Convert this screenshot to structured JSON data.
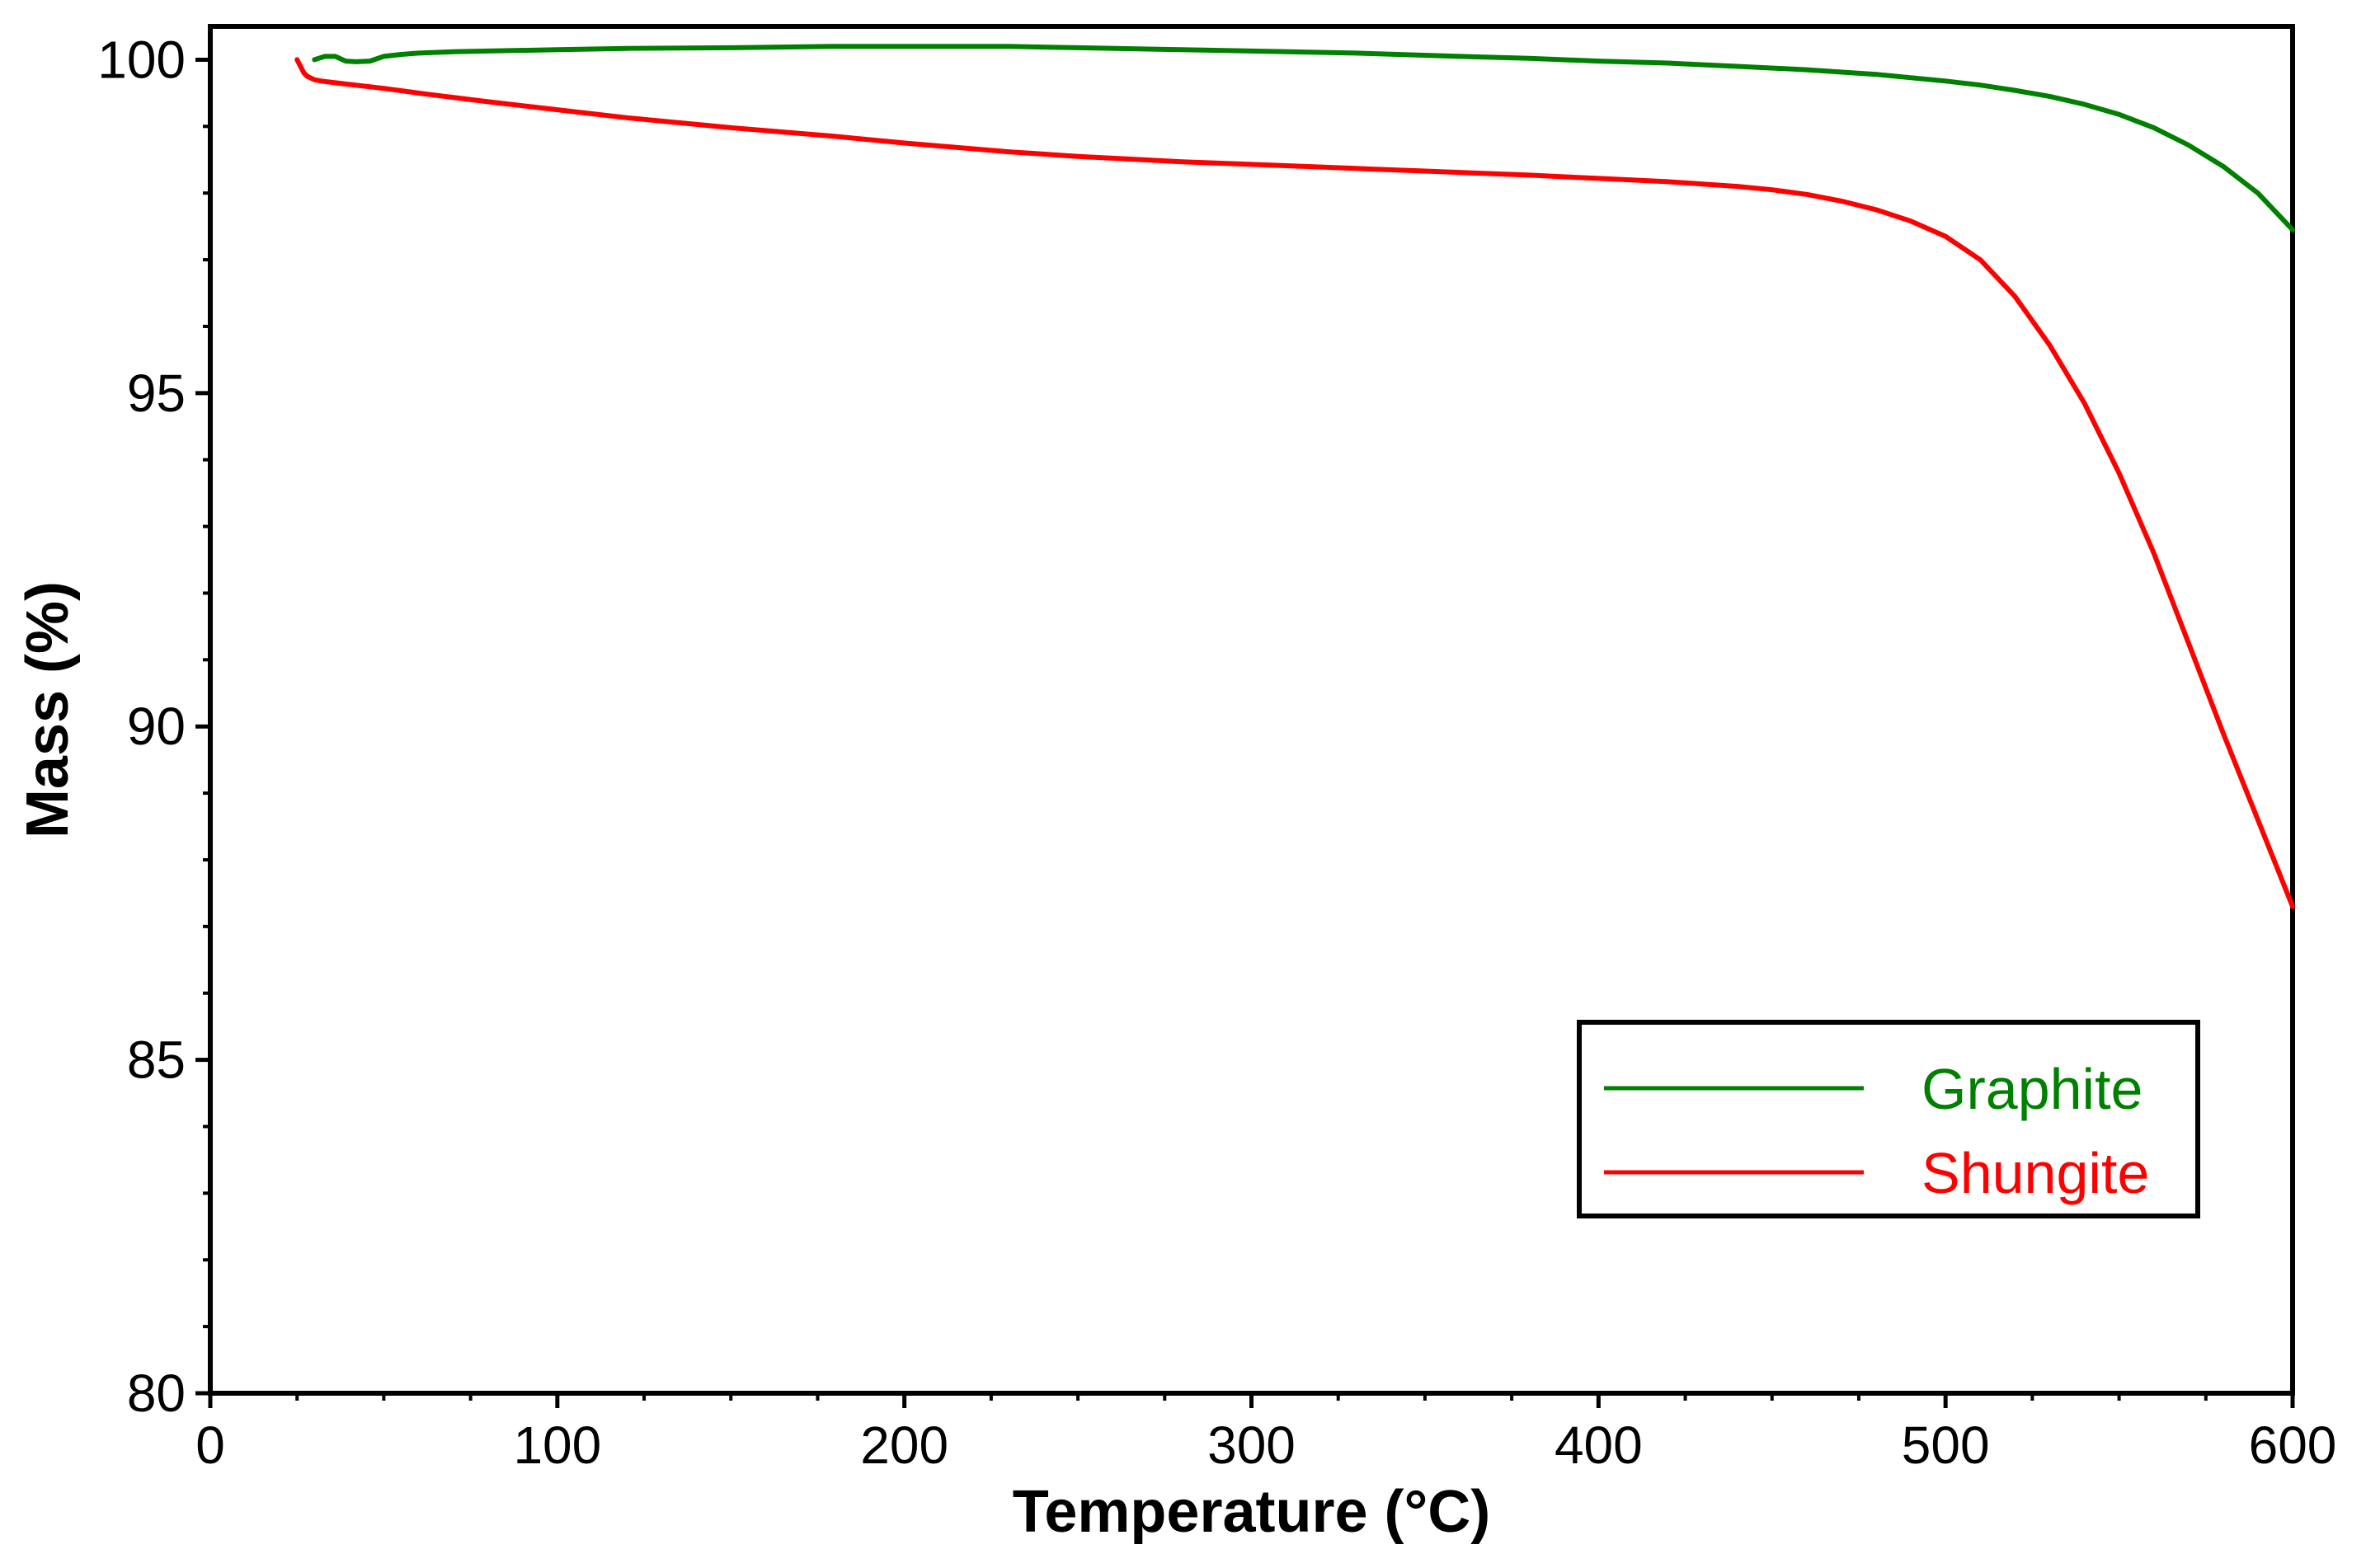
{
  "chart_data": {
    "type": "line",
    "title": "",
    "xlabel": "Temperature (°C)",
    "ylabel": "Mass (%)",
    "xlim": [
      0,
      600
    ],
    "ylim": [
      80,
      100.5
    ],
    "xticks": [
      0,
      100,
      200,
      300,
      400,
      500,
      600
    ],
    "yticks": [
      80,
      85,
      90,
      95,
      100
    ],
    "xminor_step": 25,
    "yminor_step": 1,
    "grid": false,
    "legend_position": "bottom-right",
    "series": [
      {
        "name": "Graphite",
        "color": "#008000",
        "x": [
          30,
          33,
          36,
          39,
          42,
          46,
          50,
          55,
          60,
          70,
          80,
          100,
          120,
          150,
          180,
          200,
          230,
          250,
          280,
          300,
          330,
          360,
          380,
          400,
          420,
          440,
          460,
          480,
          500,
          510,
          520,
          530,
          540,
          550,
          560,
          570,
          580,
          590,
          600
        ],
        "y": [
          100.0,
          100.05,
          100.05,
          99.98,
          99.97,
          99.98,
          100.05,
          100.08,
          100.1,
          100.12,
          100.13,
          100.15,
          100.17,
          100.18,
          100.2,
          100.2,
          100.2,
          100.18,
          100.15,
          100.13,
          100.1,
          100.05,
          100.02,
          99.98,
          99.95,
          99.9,
          99.85,
          99.78,
          99.68,
          99.62,
          99.54,
          99.45,
          99.33,
          99.18,
          98.98,
          98.72,
          98.4,
          98.0,
          97.45
        ]
      },
      {
        "name": "Shungite",
        "color": "#ff0000",
        "x": [
          25,
          26,
          27,
          28,
          30,
          32,
          35,
          40,
          50,
          60,
          80,
          100,
          120,
          150,
          180,
          200,
          230,
          250,
          280,
          300,
          330,
          350,
          380,
          400,
          420,
          440,
          450,
          460,
          470,
          480,
          490,
          500,
          510,
          520,
          530,
          540,
          550,
          560,
          570,
          580,
          590,
          600
        ],
        "y": [
          100.0,
          99.9,
          99.8,
          99.75,
          99.7,
          99.68,
          99.66,
          99.63,
          99.57,
          99.5,
          99.37,
          99.25,
          99.13,
          98.98,
          98.85,
          98.75,
          98.62,
          98.55,
          98.47,
          98.43,
          98.37,
          98.33,
          98.27,
          98.22,
          98.17,
          98.1,
          98.05,
          97.98,
          97.88,
          97.75,
          97.58,
          97.35,
          97.0,
          96.45,
          95.72,
          94.85,
          93.8,
          92.6,
          91.25,
          89.9,
          88.6,
          87.3
        ]
      }
    ]
  }
}
